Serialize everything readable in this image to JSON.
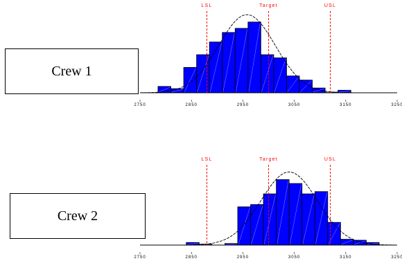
{
  "colors": {
    "bar": "#0000ff",
    "bar_stroke": "#000000",
    "spec": "#ff0000",
    "curve": "#000000"
  },
  "chart_data": [
    {
      "type": "bar",
      "label": "Crew 1",
      "xlim": [
        2750,
        3250
      ],
      "ylim": [
        0,
        24
      ],
      "x_ticks": [
        2750,
        2850,
        2950,
        3050,
        3150,
        3250
      ],
      "x_tick_labels": [
        "2750",
        "2850",
        "2950",
        "3050",
        "3150",
        "3250"
      ],
      "spec_lines": [
        {
          "label": "LSL",
          "x": 2880
        },
        {
          "label": "Target",
          "x": 3000
        },
        {
          "label": "USL",
          "x": 3120
        }
      ],
      "normal_curve": {
        "mean": 2958,
        "sd": 55
      },
      "bins": [
        {
          "x0": 2785,
          "x1": 2810,
          "count": 2
        },
        {
          "x0": 2810,
          "x1": 2835,
          "count": 1.3
        },
        {
          "x0": 2835,
          "x1": 2860,
          "count": 8
        },
        {
          "x0": 2860,
          "x1": 2885,
          "count": 12
        },
        {
          "x0": 2885,
          "x1": 2910,
          "count": 16
        },
        {
          "x0": 2910,
          "x1": 2935,
          "count": 19
        },
        {
          "x0": 2935,
          "x1": 2960,
          "count": 20.3
        },
        {
          "x0": 2960,
          "x1": 2985,
          "count": 22.3
        },
        {
          "x0": 2985,
          "x1": 3010,
          "count": 12
        },
        {
          "x0": 3010,
          "x1": 3035,
          "count": 11
        },
        {
          "x0": 3035,
          "x1": 3060,
          "count": 5.3
        },
        {
          "x0": 3060,
          "x1": 3085,
          "count": 4
        },
        {
          "x0": 3085,
          "x1": 3110,
          "count": 1.5
        },
        {
          "x0": 3110,
          "x1": 3135,
          "count": 0.2
        },
        {
          "x0": 3135,
          "x1": 3160,
          "count": 0.8
        }
      ]
    },
    {
      "type": "bar",
      "label": "Crew 2",
      "xlim": [
        2750,
        3250
      ],
      "ylim": [
        0,
        22
      ],
      "x_ticks": [
        2750,
        2850,
        2950,
        3050,
        3150,
        3250
      ],
      "x_tick_labels": [
        "2750",
        "2850",
        "2950",
        "3050",
        "3150",
        "3250"
      ],
      "spec_lines": [
        {
          "label": "LSL",
          "x": 2880
        },
        {
          "label": "Target",
          "x": 3000
        },
        {
          "label": "USL",
          "x": 3120
        }
      ],
      "normal_curve": {
        "mean": 3040,
        "sd": 55
      },
      "bins": [
        {
          "x0": 2840,
          "x1": 2865,
          "count": 0.8
        },
        {
          "x0": 2865,
          "x1": 2890,
          "count": 0.3
        },
        {
          "x0": 2915,
          "x1": 2940,
          "count": 0.5
        },
        {
          "x0": 2940,
          "x1": 2965,
          "count": 11.8
        },
        {
          "x0": 2965,
          "x1": 2990,
          "count": 12.5
        },
        {
          "x0": 2990,
          "x1": 3015,
          "count": 15.8
        },
        {
          "x0": 3015,
          "x1": 3040,
          "count": 20.2
        },
        {
          "x0": 3040,
          "x1": 3065,
          "count": 19
        },
        {
          "x0": 3065,
          "x1": 3090,
          "count": 15.8
        },
        {
          "x0": 3090,
          "x1": 3115,
          "count": 16.5
        },
        {
          "x0": 3115,
          "x1": 3140,
          "count": 7
        },
        {
          "x0": 3140,
          "x1": 3165,
          "count": 1.8
        },
        {
          "x0": 3165,
          "x1": 3190,
          "count": 1.5
        },
        {
          "x0": 3190,
          "x1": 3215,
          "count": 0.8
        }
      ]
    }
  ]
}
